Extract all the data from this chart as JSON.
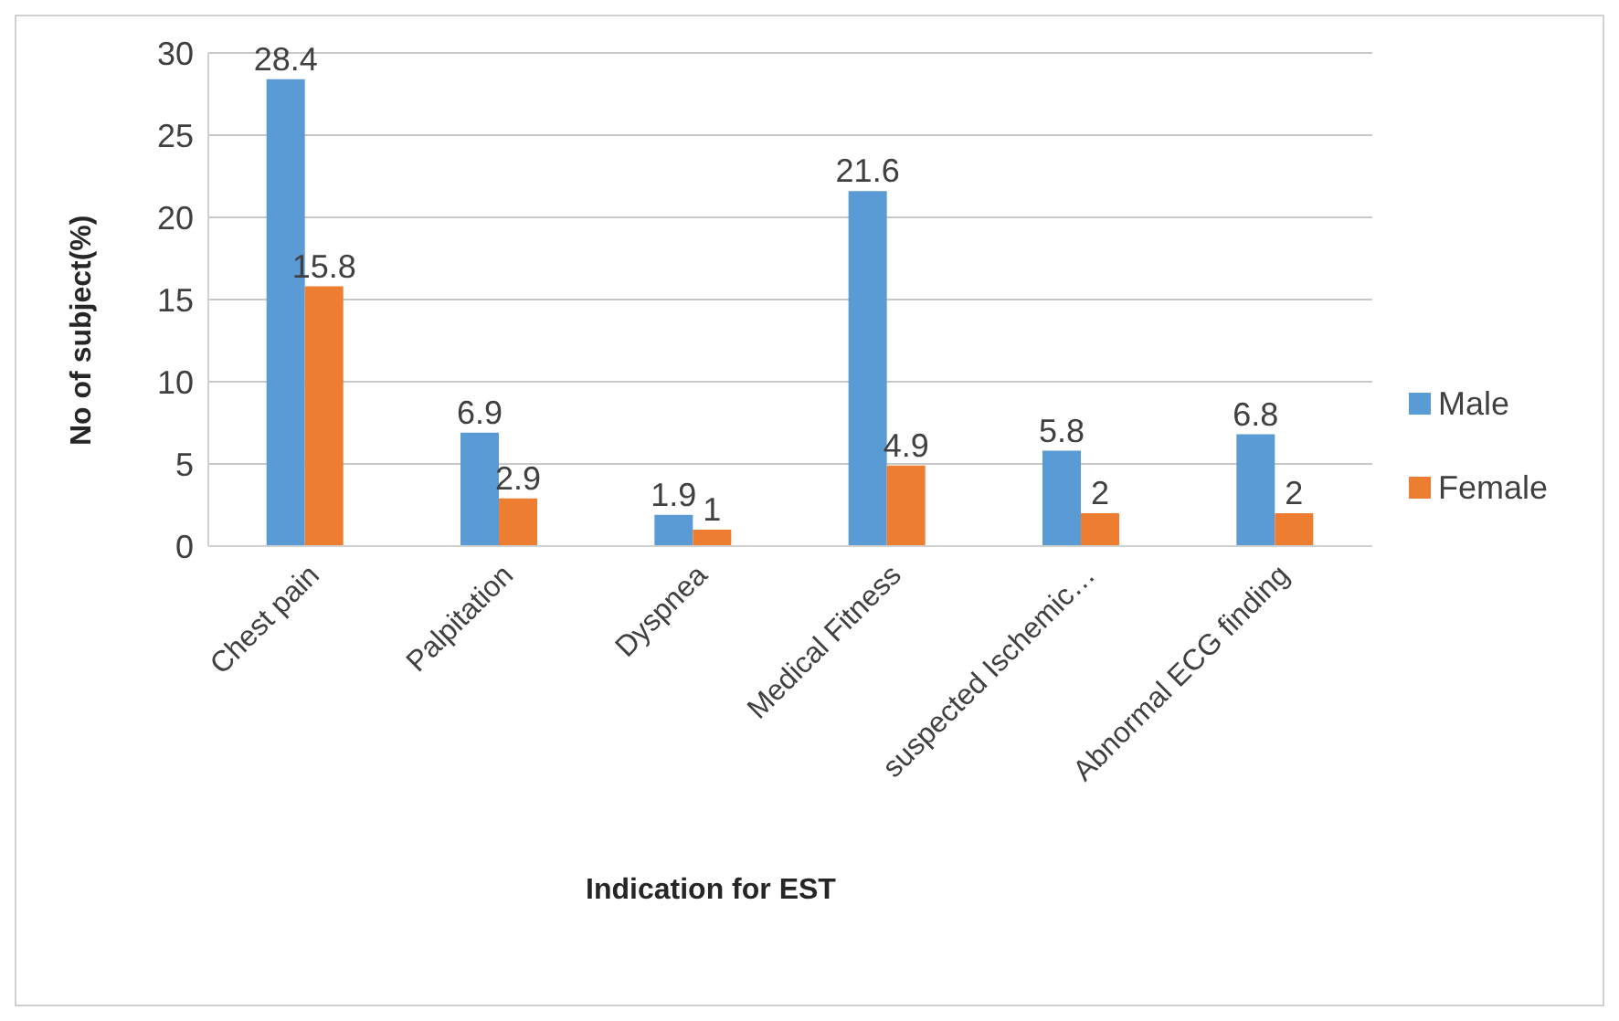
{
  "chart_data": {
    "type": "bar",
    "xlabel": "Indication for EST",
    "ylabel": "No of subject(%)",
    "categories": [
      "Chest pain",
      "Palpitation",
      "Dyspnea",
      "Medical Fitness",
      "suspected Ischemic…",
      "Abnormal ECG finding"
    ],
    "series": [
      {
        "name": "Male",
        "color": "#5b9bd5",
        "values": [
          28.4,
          6.9,
          1.9,
          21.6,
          5.8,
          6.8
        ]
      },
      {
        "name": "Female",
        "color": "#ed7d31",
        "values": [
          15.8,
          2.9,
          1,
          4.9,
          2,
          2
        ]
      }
    ],
    "ylim": [
      0,
      30
    ],
    "yticks": [
      0,
      5,
      10,
      15,
      20,
      25,
      30
    ],
    "grid": "y",
    "legend": "right",
    "data_labels": true
  }
}
